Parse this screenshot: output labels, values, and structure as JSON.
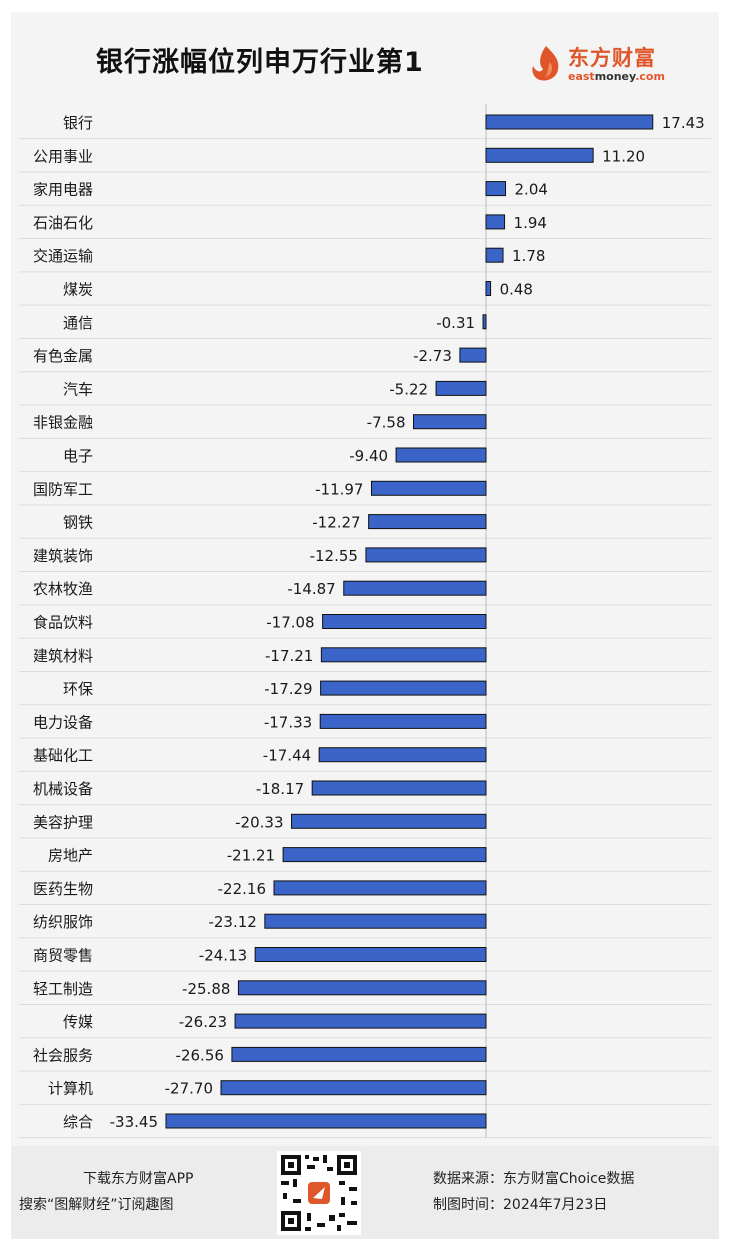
{
  "header": {
    "title": "银行涨幅位列申万行业第1",
    "logo_cn": "东方财富",
    "logo_en_part1": "east",
    "logo_en_part2": "money",
    "logo_en_part3": ".com"
  },
  "colors": {
    "bar_fill": "#3a64c8",
    "bar_stroke": "#111111",
    "background": "#f4f4f4",
    "brand": "#e0562b"
  },
  "chart_data": {
    "type": "bar",
    "orientation": "horizontal",
    "title": "银行涨幅位列申万行业第1",
    "categories": [
      "银行",
      "公用事业",
      "家用电器",
      "石油石化",
      "交通运输",
      "煤炭",
      "通信",
      "有色金属",
      "汽车",
      "非银金融",
      "电子",
      "国防军工",
      "钢铁",
      "建筑装饰",
      "农林牧渔",
      "食品饮料",
      "建筑材料",
      "环保",
      "电力设备",
      "基础化工",
      "机械设备",
      "美容护理",
      "房地产",
      "医药生物",
      "纺织服饰",
      "商贸零售",
      "轻工制造",
      "传媒",
      "社会服务",
      "计算机",
      "综合"
    ],
    "values": [
      17.43,
      11.2,
      2.04,
      1.94,
      1.78,
      0.48,
      -0.31,
      -2.73,
      -5.22,
      -7.58,
      -9.4,
      -11.97,
      -12.27,
      -12.55,
      -14.87,
      -17.08,
      -17.21,
      -17.29,
      -17.33,
      -17.44,
      -18.17,
      -20.33,
      -21.21,
      -22.16,
      -23.12,
      -24.13,
      -25.88,
      -26.23,
      -26.56,
      -27.7,
      -33.45
    ],
    "value_labels": [
      "17.43",
      "11.20",
      "2.04",
      "1.94",
      "1.78",
      "0.48",
      "-0.31",
      "-2.73",
      "-5.22",
      "-7.58",
      "-9.40",
      "-11.97",
      "-12.27",
      "-12.55",
      "-14.87",
      "-17.08",
      "-17.21",
      "-17.29",
      "-17.33",
      "-17.44",
      "-18.17",
      "-20.33",
      "-21.21",
      "-22.16",
      "-23.12",
      "-24.13",
      "-25.88",
      "-26.23",
      "-26.56",
      "-27.70",
      "-33.45"
    ],
    "xlim": [
      -33.45,
      17.43
    ],
    "grid": true,
    "legend": "none"
  },
  "footer": {
    "line1": "下载东方财富APP",
    "line2": "搜索“图解财经”订阅趣图",
    "source": "数据来源：东方财富Choice数据",
    "date": "制图时间：2024年7月23日"
  }
}
